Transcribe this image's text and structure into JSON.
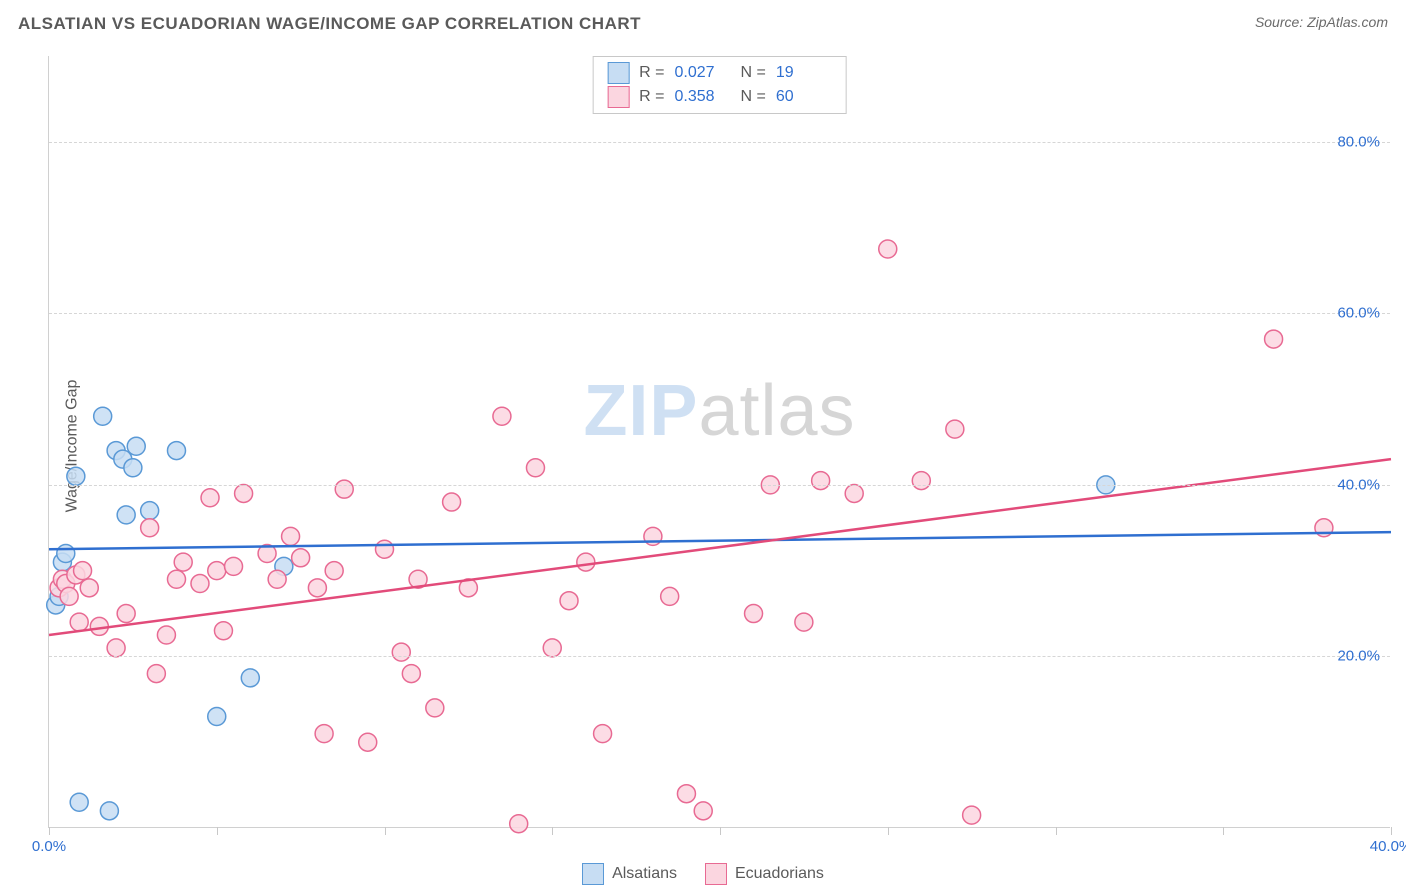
{
  "header": {
    "title": "ALSATIAN VS ECUADORIAN WAGE/INCOME GAP CORRELATION CHART",
    "source": "Source: ZipAtlas.com"
  },
  "chart": {
    "type": "scatter",
    "ylabel": "Wage/Income Gap",
    "watermark_a": "ZIP",
    "watermark_b": "atlas",
    "xlim": [
      0,
      40
    ],
    "ylim": [
      0,
      90
    ],
    "xtick_positions": [
      0,
      5,
      10,
      15,
      20,
      25,
      30,
      35,
      40
    ],
    "xtick_labels": {
      "0": "0.0%",
      "40": "40.0%"
    },
    "ytick_positions": [
      20,
      40,
      60,
      80
    ],
    "ytick_labels": {
      "20": "20.0%",
      "40": "40.0%",
      "60": "60.0%",
      "80": "80.0%"
    },
    "grid_dash": "4,4",
    "grid_color": "#d6d6d6",
    "background_color": "#ffffff",
    "axis_color": "#d0d0d0",
    "tick_label_color": "#2f6fd0",
    "series": [
      {
        "name": "Alsatians",
        "marker_fill": "#c7ddf3",
        "marker_stroke": "#5a99d6",
        "marker_radius": 9,
        "line_color": "#2f6fd0",
        "line_width": 2.5,
        "R": "0.027",
        "N": "19",
        "trend": {
          "x1": 0,
          "y1": 32.5,
          "x2": 40,
          "y2": 34.5
        },
        "points": [
          [
            0.2,
            26.0
          ],
          [
            0.3,
            27.0
          ],
          [
            0.4,
            31.0
          ],
          [
            0.8,
            41.0
          ],
          [
            0.9,
            3.0
          ],
          [
            1.6,
            48.0
          ],
          [
            1.8,
            2.0
          ],
          [
            2.0,
            44.0
          ],
          [
            2.2,
            43.0
          ],
          [
            2.3,
            36.5
          ],
          [
            2.5,
            42.0
          ],
          [
            2.6,
            44.5
          ],
          [
            3.0,
            37.0
          ],
          [
            3.8,
            44.0
          ],
          [
            5.0,
            13.0
          ],
          [
            6.0,
            17.5
          ],
          [
            7.0,
            30.5
          ],
          [
            0.5,
            32.0
          ],
          [
            31.5,
            40.0
          ]
        ]
      },
      {
        "name": "Ecuadorians",
        "marker_fill": "#fbd6e0",
        "marker_stroke": "#e86a93",
        "marker_radius": 9,
        "line_color": "#e24b7a",
        "line_width": 2.5,
        "R": "0.358",
        "N": "60",
        "trend": {
          "x1": 0,
          "y1": 22.5,
          "x2": 40,
          "y2": 43.0
        },
        "points": [
          [
            0.3,
            28.0
          ],
          [
            0.4,
            29.0
          ],
          [
            0.5,
            28.5
          ],
          [
            0.6,
            27.0
          ],
          [
            0.8,
            29.5
          ],
          [
            0.9,
            24.0
          ],
          [
            1.0,
            30.0
          ],
          [
            1.2,
            28.0
          ],
          [
            1.5,
            23.5
          ],
          [
            2.0,
            21.0
          ],
          [
            2.3,
            25.0
          ],
          [
            3.0,
            35.0
          ],
          [
            3.2,
            18.0
          ],
          [
            3.5,
            22.5
          ],
          [
            3.8,
            29.0
          ],
          [
            4.0,
            31.0
          ],
          [
            4.5,
            28.5
          ],
          [
            4.8,
            38.5
          ],
          [
            5.0,
            30.0
          ],
          [
            5.2,
            23.0
          ],
          [
            5.5,
            30.5
          ],
          [
            5.8,
            39.0
          ],
          [
            6.5,
            32.0
          ],
          [
            6.8,
            29.0
          ],
          [
            7.2,
            34.0
          ],
          [
            7.5,
            31.5
          ],
          [
            8.0,
            28.0
          ],
          [
            8.2,
            11.0
          ],
          [
            8.5,
            30.0
          ],
          [
            8.8,
            39.5
          ],
          [
            9.5,
            10.0
          ],
          [
            10.0,
            32.5
          ],
          [
            10.5,
            20.5
          ],
          [
            10.8,
            18.0
          ],
          [
            11.0,
            29.0
          ],
          [
            11.5,
            14.0
          ],
          [
            12.0,
            38.0
          ],
          [
            12.5,
            28.0
          ],
          [
            13.5,
            48.0
          ],
          [
            14.0,
            0.5
          ],
          [
            14.5,
            42.0
          ],
          [
            15.0,
            21.0
          ],
          [
            15.5,
            26.5
          ],
          [
            16.0,
            31.0
          ],
          [
            16.5,
            11.0
          ],
          [
            18.0,
            34.0
          ],
          [
            18.5,
            27.0
          ],
          [
            19.0,
            4.0
          ],
          [
            19.5,
            2.0
          ],
          [
            21.0,
            25.0
          ],
          [
            21.5,
            40.0
          ],
          [
            22.5,
            24.0
          ],
          [
            23.0,
            40.5
          ],
          [
            24.0,
            39.0
          ],
          [
            25.0,
            67.5
          ],
          [
            26.0,
            40.5
          ],
          [
            27.0,
            46.5
          ],
          [
            27.5,
            1.5
          ],
          [
            36.5,
            57.0
          ],
          [
            38.0,
            35.0
          ]
        ]
      }
    ]
  },
  "legend_top": {
    "r_prefix": "R =",
    "n_prefix": "N ="
  },
  "legend_bottom": {
    "items": [
      "Alsatians",
      "Ecuadorians"
    ]
  }
}
